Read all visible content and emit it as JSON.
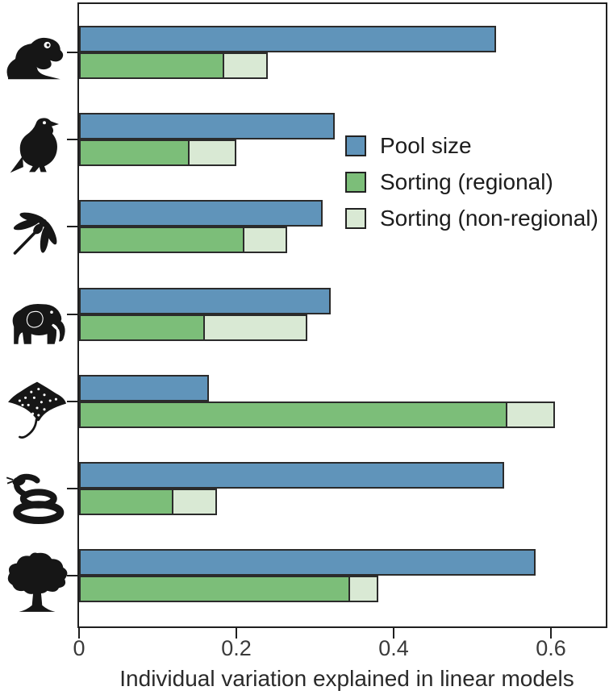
{
  "figure": {
    "background": "#ffffff"
  },
  "chart_data": {
    "type": "bar",
    "orientation": "horizontal",
    "title": "",
    "xlabel": "Individual variation explained in linear models",
    "xlim": [
      0,
      0.67
    ],
    "xticks": [
      0,
      0.2,
      0.4,
      0.6
    ],
    "xtick_labels": [
      "0",
      "0.2",
      "0.4",
      "0.6"
    ],
    "grid": false,
    "categories": [
      "frog",
      "eagle",
      "dragonfly",
      "elephant",
      "stingray",
      "snake",
      "tree"
    ],
    "category_icons": [
      "frog-icon",
      "eagle-icon",
      "dragonfly-icon",
      "elephant-icon",
      "stingray-icon",
      "snake-icon",
      "tree-icon"
    ],
    "series": [
      {
        "name": "Pool size",
        "color": "#6094ba",
        "values": [
          0.53,
          0.325,
          0.31,
          0.32,
          0.165,
          0.54,
          0.58
        ]
      },
      {
        "name": "Sorting (regional)",
        "color": "#7cbe79",
        "values": [
          0.185,
          0.14,
          0.21,
          0.16,
          0.545,
          0.12,
          0.345
        ]
      },
      {
        "name": "Sorting (non-regional)",
        "color": "#d9e9d4",
        "stacked_on": "Sorting (regional)",
        "values": [
          0.055,
          0.06,
          0.055,
          0.13,
          0.06,
          0.055,
          0.035
        ],
        "stack_totals": [
          0.24,
          0.2,
          0.265,
          0.29,
          0.605,
          0.175,
          0.38
        ]
      }
    ],
    "legend": {
      "position": "inside-top-right",
      "entries": [
        "Pool size",
        "Sorting (regional)",
        "Sorting (non-regional)"
      ]
    }
  },
  "colors": {
    "pool_size": "#6094ba",
    "sorting_regional": "#7cbe79",
    "sorting_non_regional": "#d9e9d4",
    "bar_border": "#2b2b2b",
    "axis": "#1f1f1f",
    "text": "#2a2a2a"
  }
}
